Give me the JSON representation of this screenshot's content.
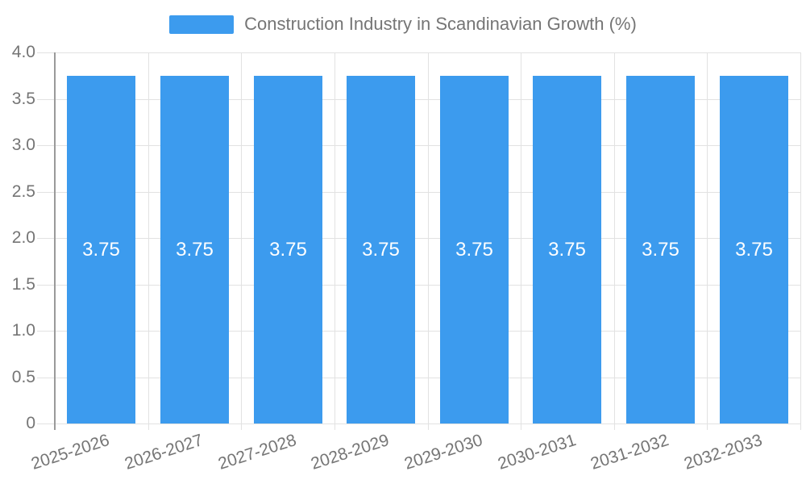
{
  "chart_data": {
    "type": "bar",
    "title": "Construction Industry in Scandinavian Growth (%)",
    "categories": [
      "2025-2026",
      "2026-2027",
      "2027-2028",
      "2028-2029",
      "2029-2030",
      "2030-2031",
      "2031-2032",
      "2032-2033"
    ],
    "series": [
      {
        "name": "Construction Industry in Scandinavian Growth (%)",
        "values": [
          3.75,
          3.75,
          3.75,
          3.75,
          3.75,
          3.75,
          3.75,
          3.75
        ],
        "data_labels": [
          "3.75",
          "3.75",
          "3.75",
          "3.75",
          "3.75",
          "3.75",
          "3.75",
          "3.75"
        ]
      }
    ],
    "xlabel": "",
    "ylabel": "",
    "ylim": [
      0,
      4
    ],
    "ytick_values": [
      0,
      0.5,
      1,
      1.5,
      2,
      2.5,
      3,
      3.5,
      4
    ],
    "ytick_labels": [
      "0",
      "0.5",
      "1.0",
      "1.5",
      "2.0",
      "2.5",
      "3.0",
      "3.5",
      "4.0"
    ],
    "grid": true,
    "legend_position": "top",
    "data_label_position": "center",
    "colors": {
      "bar": "#3C9BEE",
      "data_label": "#FFFFFF",
      "text": "#757575",
      "grid": "#E2E2E2",
      "axis_line": "#9A9A9A",
      "background": "#FFFFFF"
    }
  }
}
